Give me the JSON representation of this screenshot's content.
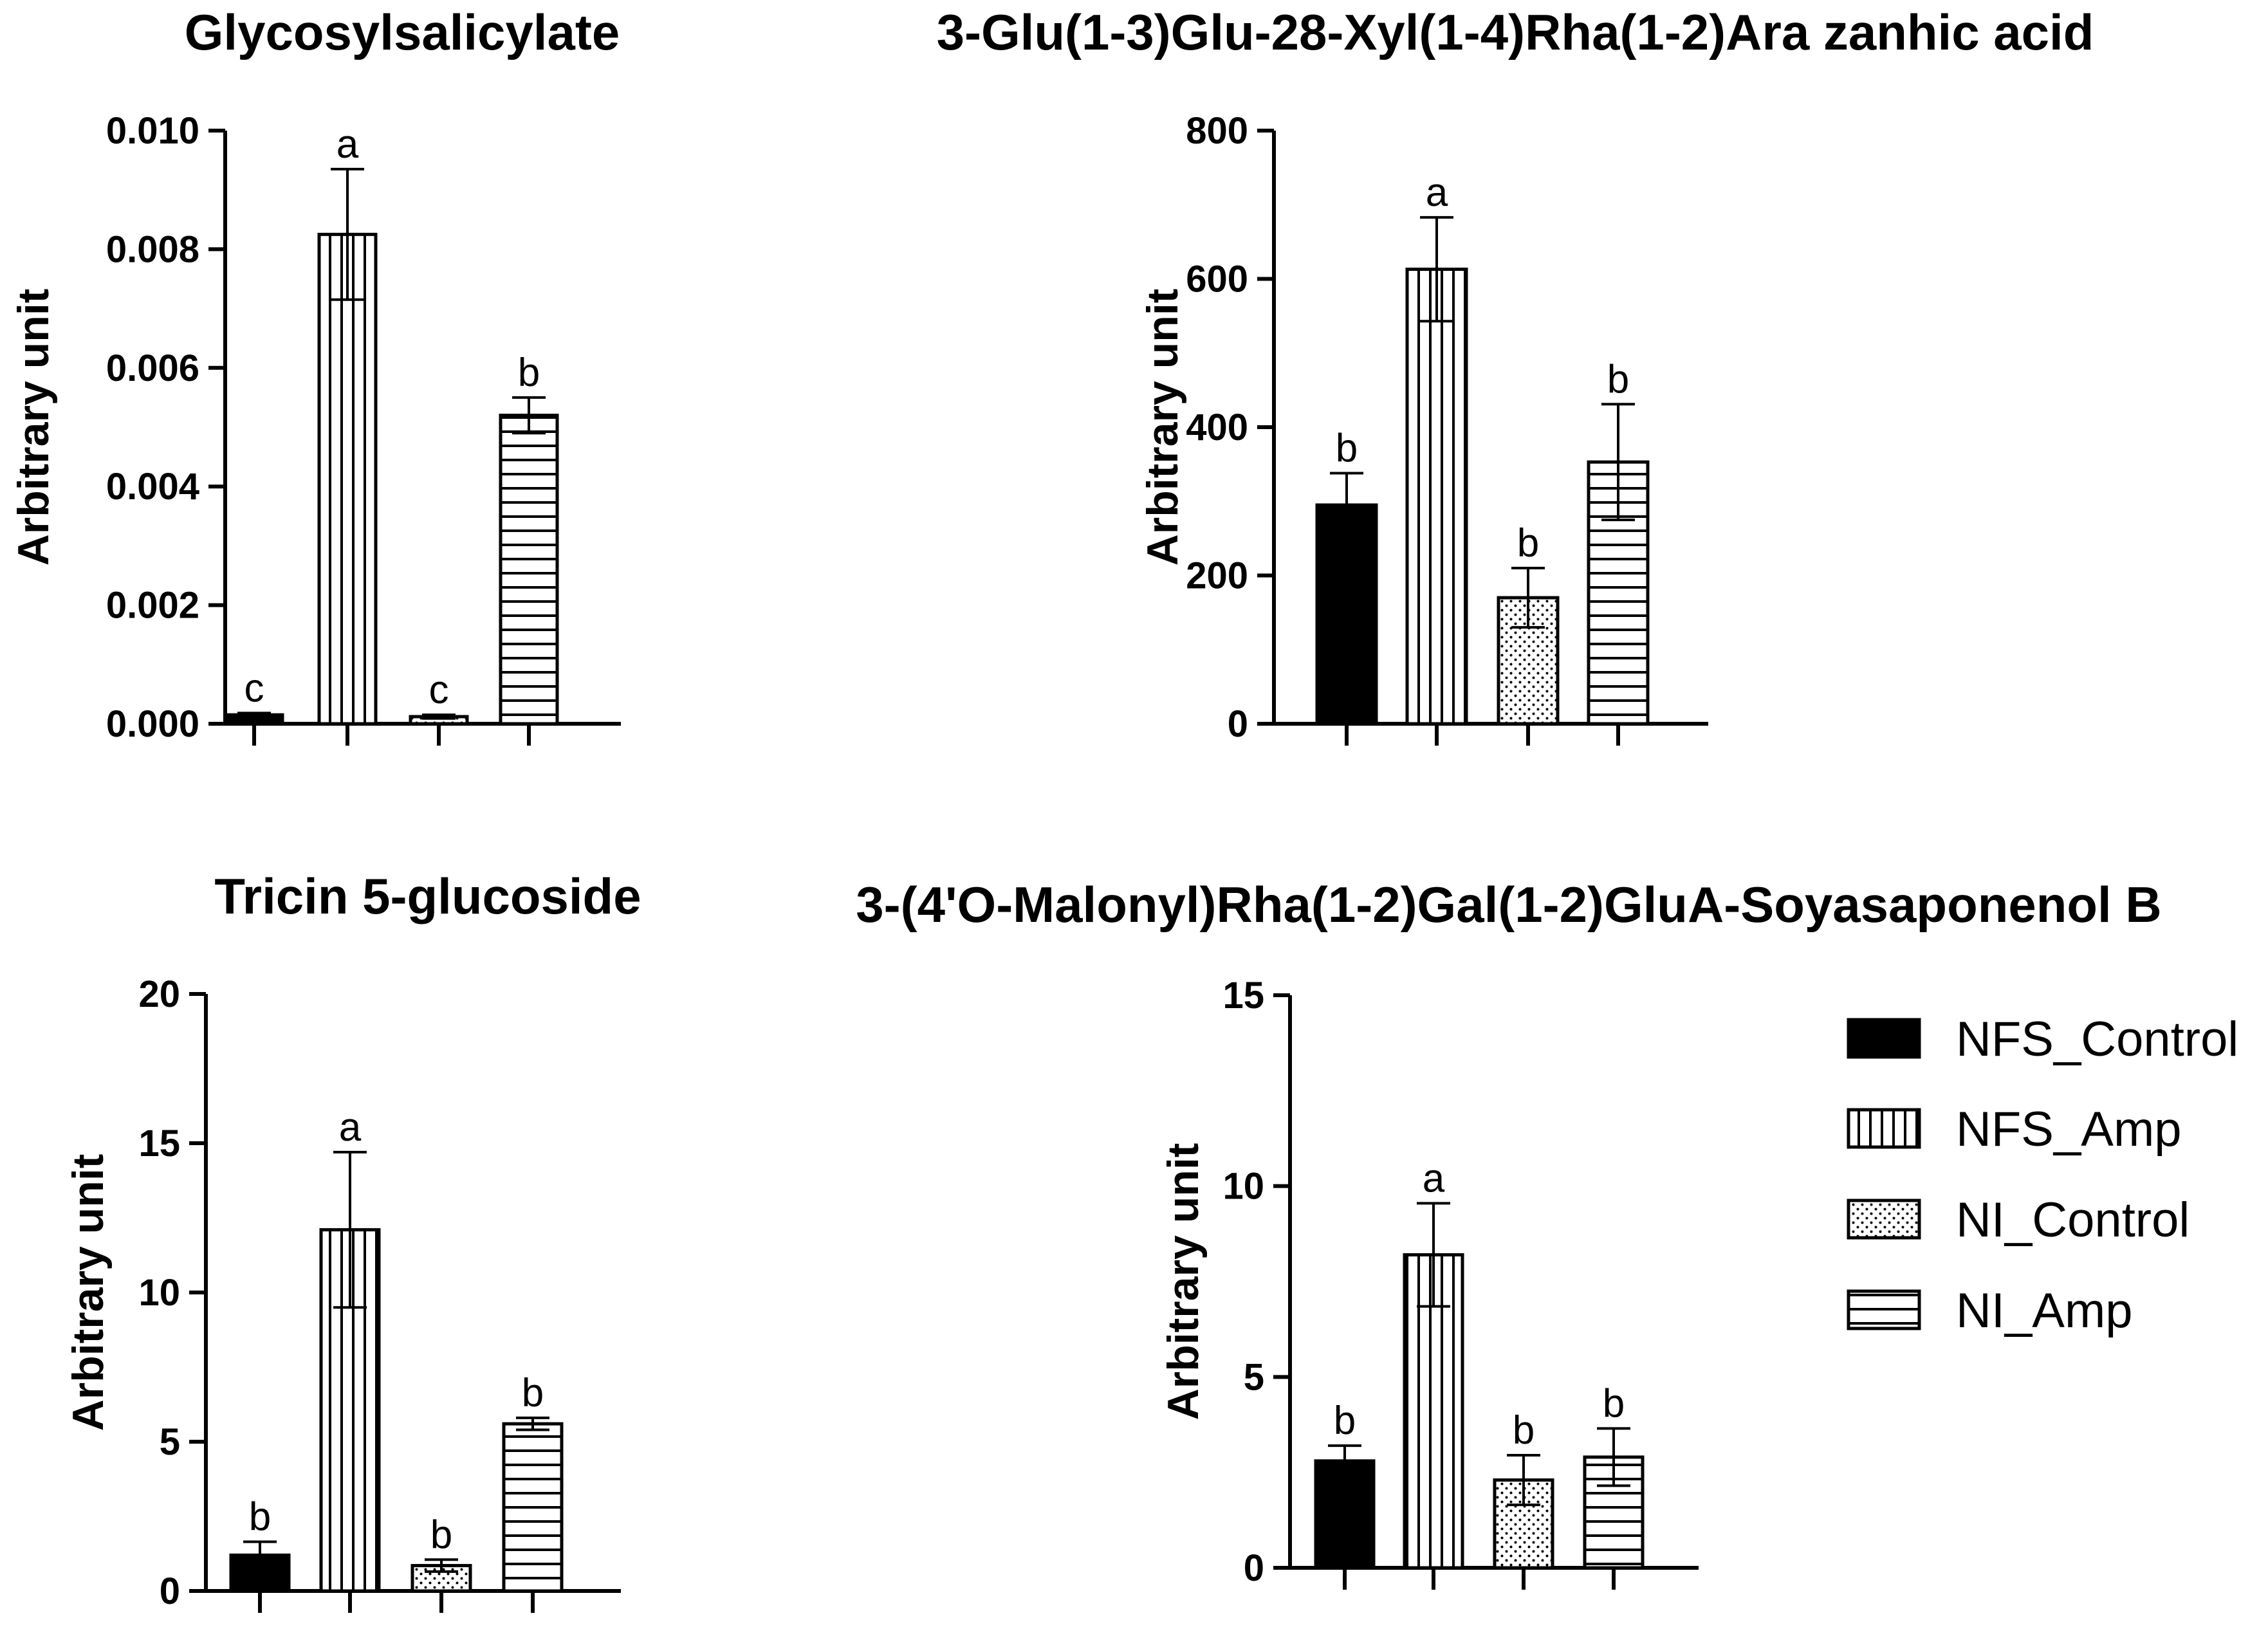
{
  "legend": {
    "position": "right",
    "items": [
      {
        "label": "NFS_Control",
        "pattern": "solid"
      },
      {
        "label": "NFS_Amp",
        "pattern": "vertical-lines"
      },
      {
        "label": "NI_Control",
        "pattern": "dots"
      },
      {
        "label": "NI_Amp",
        "pattern": "horizontal-lines"
      }
    ]
  },
  "colors": {
    "ink": "#000000",
    "fill": "#ffffff",
    "background": "#ffffff"
  },
  "chart_data": [
    {
      "type": "bar",
      "title": "Glycosylsalicylate",
      "ylabel": "Arbitrary unit",
      "xlabel": "",
      "ylim": [
        0,
        0.01
      ],
      "yticks": [
        0,
        0.002,
        0.004,
        0.006,
        0.008,
        0.01
      ],
      "ytick_labels": [
        "0.000",
        "0.002",
        "0.004",
        "0.006",
        "0.008",
        "0.010"
      ],
      "categories": [
        "NFS_Control",
        "NFS_Amp",
        "NI_Control",
        "NI_Amp"
      ],
      "values": [
        0.00015,
        0.00825,
        0.00012,
        0.0052
      ],
      "errors": [
        3e-05,
        0.0011,
        3e-05,
        0.0003
      ],
      "significance": [
        "c",
        "a",
        "c",
        "b"
      ],
      "grid": false
    },
    {
      "type": "bar",
      "title": "3-Glu(1-3)Glu-28-Xyl(1-4)Rha(1-2)Ara zanhic acid",
      "ylabel": "Arbitrary unit",
      "xlabel": "",
      "ylim": [
        0,
        800
      ],
      "yticks": [
        0,
        200,
        400,
        600,
        800
      ],
      "ytick_labels": [
        "0",
        "200",
        "400",
        "600",
        "800"
      ],
      "categories": [
        "NFS_Control",
        "NFS_Amp",
        "NI_Control",
        "NI_Amp"
      ],
      "values": [
        295,
        613,
        170,
        353
      ],
      "errors": [
        43,
        70,
        40,
        78
      ],
      "significance": [
        "b",
        "a",
        "b",
        "b"
      ],
      "grid": false
    },
    {
      "type": "bar",
      "title": "Tricin 5-glucoside",
      "ylabel": "Arbitrary unit",
      "xlabel": "",
      "ylim": [
        0,
        20
      ],
      "yticks": [
        0,
        5,
        10,
        15,
        20
      ],
      "ytick_labels": [
        "0",
        "5",
        "10",
        "15",
        "20"
      ],
      "categories": [
        "NFS_Control",
        "NFS_Amp",
        "NI_Control",
        "NI_Amp"
      ],
      "values": [
        1.2,
        12.1,
        0.85,
        5.6
      ],
      "errors": [
        0.45,
        2.6,
        0.2,
        0.2
      ],
      "significance": [
        "b",
        "a",
        "b",
        "b"
      ],
      "grid": false
    },
    {
      "type": "bar",
      "title": "3-(4'O-Malonyl)Rha(1-2)Gal(1-2)GluA-Soyasaponenol B",
      "ylabel": "Arbitrary unit",
      "xlabel": "",
      "ylim": [
        0,
        15
      ],
      "yticks": [
        0,
        5,
        10,
        15
      ],
      "ytick_labels": [
        "0",
        "5",
        "10",
        "15"
      ],
      "categories": [
        "NFS_Control",
        "NFS_Amp",
        "NI_Control",
        "NI_Amp"
      ],
      "values": [
        2.8,
        8.2,
        2.3,
        2.9
      ],
      "errors": [
        0.4,
        1.35,
        0.65,
        0.75
      ],
      "significance": [
        "b",
        "a",
        "b",
        "b"
      ],
      "grid": false
    }
  ]
}
